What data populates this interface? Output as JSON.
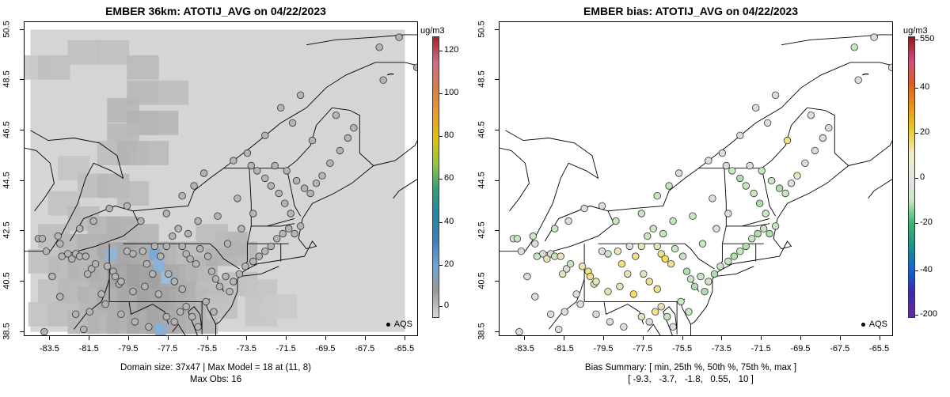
{
  "left": {
    "title": "EMBER 36km: ATOTIJ_AVG on 04/22/2023",
    "footer_line1": "Domain size: 37x47 | Max Model = 18 at (11, 8)",
    "footer_line2": "Max Obs: 16",
    "legend_label": "AQS",
    "colorbar": {
      "unit": "ug/m3",
      "ticks": [
        "120",
        "100",
        "80",
        "60",
        "40",
        "20",
        "0"
      ],
      "colors": [
        "#aa2222",
        "#d46a86",
        "#e07a4a",
        "#ee9a22",
        "#e2c400",
        "#8fc63c",
        "#2ea07a",
        "#1b8aa6",
        "#3b7fc4",
        "#6fa6d8",
        "#9a9a9a",
        "#d8d8d8"
      ]
    }
  },
  "right": {
    "title": "EMBER bias: ATOTIJ_AVG on 04/22/2023",
    "footer_line1": "Bias Summary: [ min, 25th %, 50th %, 75th %, max ]",
    "footer_line2": "[ -9.3,   -3.7,   -1.8,   0.55,   10 ]",
    "legend_label": "AQS",
    "colorbar": {
      "unit": "ug/m3",
      "ticks": [
        "550",
        "40",
        "20",
        "0",
        "-20",
        "-40",
        "-200"
      ],
      "colors": [
        "#8c1a1a",
        "#c8527a",
        "#d8602a",
        "#e8961e",
        "#e4cc30",
        "#f0ecc8",
        "#e4e4e4",
        "#c8e6c0",
        "#40b070",
        "#208f8f",
        "#1a5fc8",
        "#3a2aaa",
        "#6b2aa0"
      ]
    }
  },
  "axes": {
    "x_ticks": [
      "-83.5",
      "-81.5",
      "-79.5",
      "-77.5",
      "-75.5",
      "-73.5",
      "-71.5",
      "-69.5",
      "-67.5",
      "-65.5"
    ],
    "y_ticks": [
      "50.5",
      "48.5",
      "46.5",
      "44.5",
      "42.5",
      "40.5",
      "38.5"
    ],
    "x_range": [
      -84.8,
      -64.8
    ],
    "y_range": [
      38.3,
      50.8
    ]
  },
  "map": {
    "sites": [
      [
        -84.1,
        42.2
      ],
      [
        -83.9,
        42.2
      ],
      [
        -83.7,
        41.7
      ],
      [
        -83.1,
        42.3
      ],
      [
        -83.0,
        42.0
      ],
      [
        -82.9,
        41.5
      ],
      [
        -82.6,
        41.6
      ],
      [
        -82.4,
        41.4
      ],
      [
        -82.2,
        41.6
      ],
      [
        -82.0,
        41.5
      ],
      [
        -81.7,
        41.5
      ],
      [
        -81.4,
        41.0
      ],
      [
        -81.6,
        40.8
      ],
      [
        -81.2,
        41.2
      ],
      [
        -80.6,
        41.1
      ],
      [
        -80.3,
        40.9
      ],
      [
        -80.0,
        40.4
      ],
      [
        -80.2,
        40.7
      ],
      [
        -79.9,
        40.5
      ],
      [
        -79.6,
        41.7
      ],
      [
        -79.3,
        41.6
      ],
      [
        -78.8,
        41.7
      ],
      [
        -78.6,
        41.2
      ],
      [
        -78.3,
        40.8
      ],
      [
        -78.2,
        41.9
      ],
      [
        -77.9,
        41.5
      ],
      [
        -77.6,
        41.9
      ],
      [
        -77.3,
        42.3
      ],
      [
        -77.0,
        42.6
      ],
      [
        -76.5,
        42.4
      ],
      [
        -76.8,
        41.9
      ],
      [
        -76.6,
        41.6
      ],
      [
        -76.4,
        41.4
      ],
      [
        -76.1,
        41.2
      ],
      [
        -75.9,
        41.8
      ],
      [
        -75.5,
        41.5
      ],
      [
        -75.3,
        40.9
      ],
      [
        -75.1,
        40.6
      ],
      [
        -74.9,
        40.3
      ],
      [
        -74.6,
        40.7
      ],
      [
        -74.4,
        40.1
      ],
      [
        -74.2,
        40.5
      ],
      [
        -73.9,
        40.8
      ],
      [
        -73.6,
        41.1
      ],
      [
        -73.2,
        41.3
      ],
      [
        -72.9,
        41.5
      ],
      [
        -72.6,
        41.7
      ],
      [
        -72.3,
        41.9
      ],
      [
        -72.0,
        42.2
      ],
      [
        -71.7,
        42.4
      ],
      [
        -71.4,
        42.6
      ],
      [
        -71.1,
        42.4
      ],
      [
        -70.8,
        42.7
      ],
      [
        -71.3,
        43.2
      ],
      [
        -71.6,
        43.6
      ],
      [
        -71.9,
        44.0
      ],
      [
        -72.3,
        44.3
      ],
      [
        -72.6,
        44.6
      ],
      [
        -73.0,
        44.9
      ],
      [
        -73.3,
        45.1
      ],
      [
        -72.1,
        45.1
      ],
      [
        -71.5,
        44.9
      ],
      [
        -71.0,
        44.5
      ],
      [
        -70.6,
        44.2
      ],
      [
        -70.3,
        44.0
      ],
      [
        -70.0,
        44.4
      ],
      [
        -69.7,
        44.7
      ],
      [
        -69.3,
        45.2
      ],
      [
        -68.8,
        45.7
      ],
      [
        -68.4,
        46.2
      ],
      [
        -68.1,
        46.6
      ],
      [
        -69.0,
        47.1
      ],
      [
        -70.2,
        46.1
      ],
      [
        -71.2,
        46.8
      ],
      [
        -72.6,
        46.3
      ],
      [
        -73.5,
        45.6
      ],
      [
        -74.2,
        45.3
      ],
      [
        -75.7,
        44.8
      ],
      [
        -76.2,
        44.3
      ],
      [
        -76.8,
        43.9
      ],
      [
        -77.6,
        43.2
      ],
      [
        -78.9,
        42.9
      ],
      [
        -79.6,
        43.5
      ],
      [
        -80.5,
        43.4
      ],
      [
        -81.3,
        42.9
      ],
      [
        -82.0,
        42.6
      ],
      [
        -83.4,
        40.7
      ],
      [
        -83.0,
        39.9
      ],
      [
        -82.2,
        39.2
      ],
      [
        -81.5,
        39.3
      ],
      [
        -80.7,
        39.6
      ],
      [
        -79.9,
        39.2
      ],
      [
        -79.2,
        38.9
      ],
      [
        -78.5,
        38.7
      ],
      [
        -77.6,
        39.1
      ],
      [
        -77.2,
        38.9
      ],
      [
        -76.9,
        39.3
      ],
      [
        -76.6,
        39.5
      ],
      [
        -76.3,
        39.1
      ],
      [
        -76.0,
        38.7
      ],
      [
        -75.6,
        39.7
      ],
      [
        -75.2,
        39.3
      ],
      [
        -76.8,
        40.2
      ],
      [
        -77.2,
        40.5
      ],
      [
        -78.0,
        40.0
      ],
      [
        -78.7,
        40.3
      ],
      [
        -79.3,
        40.1
      ],
      [
        -80.9,
        40.0
      ],
      [
        -83.8,
        38.5
      ],
      [
        -81.8,
        38.6
      ],
      [
        -74.0,
        43.8
      ],
      [
        -73.2,
        43.2
      ],
      [
        -71.8,
        47.4
      ],
      [
        -70.8,
        47.9
      ],
      [
        -66.6,
        48.5
      ],
      [
        -64.9,
        49.0
      ],
      [
        -65.8,
        50.2
      ],
      [
        -66.8,
        49.8
      ],
      [
        -74.5,
        42.0
      ],
      [
        -73.8,
        42.6
      ],
      [
        -75.0,
        43.1
      ],
      [
        -76.0,
        42.9
      ],
      [
        -77.5,
        40.8
      ]
    ],
    "bias_colors": [
      "#dcdcdc",
      "#c8e6c0",
      "#dcdcdc",
      "#c8e6c0",
      "#dcdcdc",
      "#c8e6c0",
      "#dcdcdc",
      "#e8e4b8",
      "#dcdcdc",
      "#c8e6c0",
      "#e8e4b8",
      "#dcdcdc",
      "#e8e4b8",
      "#c8e6c0",
      "#e8e4b8",
      "#f0e08a",
      "#e8e4b8",
      "#f0e08a",
      "#e8e4b8",
      "#dcdcdc",
      "#c8e6c0",
      "#e8e4b8",
      "#f0e08a",
      "#e8e4b8",
      "#dcdcdc",
      "#f0e08a",
      "#e8e4b8",
      "#c8e6c0",
      "#c8e6c0",
      "#c8e6c0",
      "#e8e4b8",
      "#f0e08a",
      "#f4e060",
      "#f0e08a",
      "#c8e6c0",
      "#c8e6c0",
      "#b0dcb0",
      "#c8e6c0",
      "#b0dcb0",
      "#c8e6c0",
      "#b0dcb0",
      "#c8e6c0",
      "#b0dcb0",
      "#c8e6c0",
      "#c8e6c0",
      "#b0dcb0",
      "#c8e6c0",
      "#b0dcb0",
      "#c8e6c0",
      "#b0dcb0",
      "#c8e6c0",
      "#b0dcb0",
      "#c8e6c0",
      "#c8e6c0",
      "#b0dcb0",
      "#c8e6c0",
      "#c8e6c0",
      "#b0dcb0",
      "#c8e6c0",
      "#dcdcdc",
      "#dcdcdc",
      "#c8e6c0",
      "#c8e6c0",
      "#b0dcb0",
      "#c8e6c0",
      "#dcdcdc",
      "#e8e4b8",
      "#dcdcdc",
      "#dcdcdc",
      "#dcdcdc",
      "#dcdcdc",
      "#dcdcdc",
      "#f0e08a",
      "#dcdcdc",
      "#dcdcdc",
      "#dcdcdc",
      "#dcdcdc",
      "#dcdcdc",
      "#c8e6c0",
      "#c8e6c0",
      "#c8e6c0",
      "#c8e6c0",
      "#dcdcdc",
      "#dcdcdc",
      "#dcdcdc",
      "#c8e6c0",
      "#dcdcdc",
      "#dcdcdc",
      "#dcdcdc",
      "#dcdcdc",
      "#dcdcdc",
      "#dcdcdc",
      "#dcdcdc",
      "#dcdcdc",
      "#e8e4b8",
      "#dcdcdc",
      "#f0e08a",
      "#e8e4b8",
      "#c8e6c0",
      "#dcdcdc",
      "#c8e6c0",
      "#c8e6c0",
      "#f0e08a",
      "#f0e08a",
      "#f4e060",
      "#e8e4b8",
      "#e8e4b8",
      "#dcdcdc",
      "#dcdcdc",
      "#dcdcdc",
      "#dcdcdc",
      "#dcdcdc",
      "#dcdcdc",
      "#dcdcdc",
      "#dcdcdc",
      "#dcdcdc",
      "#dcdcdc",
      "#c8e6c0",
      "#c8e6c0",
      "#dcdcdc",
      "#c8e6c0",
      "#c8e6c0",
      "#e8e4b8"
    ],
    "shade_cells": [
      [
        -84.3,
        49.0,
        "#c8c8c8"
      ],
      [
        -83.3,
        49.0,
        "#c0c0c0"
      ],
      [
        -81.8,
        49.6,
        "#c0c0c0"
      ],
      [
        -80.3,
        49.6,
        "#c0c0c0"
      ],
      [
        -78.8,
        49.0,
        "#bababa"
      ],
      [
        -78.8,
        48.0,
        "#b8b8b8"
      ],
      [
        -77.3,
        48.0,
        "#bebebe"
      ],
      [
        -79.8,
        47.3,
        "#b6b6b6"
      ],
      [
        -78.8,
        46.8,
        "#b2b2b2"
      ],
      [
        -77.8,
        46.8,
        "#b6b6b6"
      ],
      [
        -79.8,
        46.3,
        "#b8b8b8"
      ],
      [
        -80.3,
        45.6,
        "#bebebe"
      ],
      [
        -79.3,
        45.6,
        "#b4b4b4"
      ],
      [
        -78.3,
        45.6,
        "#bababa"
      ],
      [
        -82.3,
        45.0,
        "#c4c4c4"
      ],
      [
        -81.3,
        44.3,
        "#bebebe"
      ],
      [
        -80.3,
        44.3,
        "#b8b8b8"
      ],
      [
        -79.3,
        44.0,
        "#bcbcbc"
      ],
      [
        -82.8,
        43.6,
        "#c2c2c2"
      ],
      [
        -81.8,
        43.0,
        "#bcbcbc"
      ],
      [
        -80.8,
        42.6,
        "#b6b6b6"
      ],
      [
        -79.8,
        42.6,
        "#b0b0b0"
      ],
      [
        -78.8,
        42.3,
        "#b6b6b6"
      ],
      [
        -83.3,
        42.3,
        "#bebebe"
      ],
      [
        -82.3,
        41.9,
        "#b8b8b8"
      ],
      [
        -81.3,
        41.9,
        "#b2b2b2"
      ],
      [
        -80.3,
        41.6,
        "#a8a8a8"
      ],
      [
        -79.3,
        41.6,
        "#a6a6a6"
      ],
      [
        -78.3,
        41.6,
        "#acacac"
      ],
      [
        -77.3,
        41.6,
        "#b2b2b2"
      ],
      [
        -76.3,
        41.6,
        "#bcbcbc"
      ],
      [
        -83.8,
        41.3,
        "#c0c0c0"
      ],
      [
        -82.8,
        41.0,
        "#bababa"
      ],
      [
        -81.8,
        41.0,
        "#b4b4b4"
      ],
      [
        -80.8,
        40.7,
        "#aeaeae"
      ],
      [
        -79.8,
        40.7,
        "#a4a4a4"
      ],
      [
        -78.8,
        40.7,
        "#9e9e9e"
      ],
      [
        -77.8,
        40.7,
        "#a2a2a2"
      ],
      [
        -76.8,
        40.7,
        "#acacac"
      ],
      [
        -75.8,
        41.0,
        "#b6b6b6"
      ],
      [
        -74.8,
        41.6,
        "#b0b0b0"
      ],
      [
        -73.8,
        41.6,
        "#b6b6b6"
      ],
      [
        -74.3,
        42.0,
        "#b4b4b4"
      ],
      [
        -75.3,
        42.3,
        "#bcbcbc"
      ],
      [
        -83.3,
        40.1,
        "#c0c0c0"
      ],
      [
        -82.3,
        40.1,
        "#b8b8b8"
      ],
      [
        -81.3,
        39.8,
        "#b2b2b2"
      ],
      [
        -80.3,
        39.8,
        "#acacac"
      ],
      [
        -79.3,
        39.8,
        "#a8a8a8"
      ],
      [
        -78.3,
        39.8,
        "#a2a2a2"
      ],
      [
        -77.3,
        39.8,
        "#a4a4a4"
      ],
      [
        -76.3,
        39.8,
        "#aeaeae"
      ],
      [
        -75.3,
        40.1,
        "#bababa"
      ],
      [
        -83.8,
        39.2,
        "#c4c4c4"
      ],
      [
        -82.8,
        39.2,
        "#bebebe"
      ],
      [
        -81.8,
        38.9,
        "#b8b8b8"
      ],
      [
        -80.8,
        38.9,
        "#b2b2b2"
      ],
      [
        -79.8,
        38.9,
        "#aeaeae"
      ],
      [
        -78.8,
        38.9,
        "#a8a8a8"
      ],
      [
        -77.8,
        38.9,
        "#a4a4a4"
      ],
      [
        -76.8,
        38.9,
        "#aaaaaa"
      ],
      [
        -75.8,
        38.9,
        "#b4b4b4"
      ],
      [
        -74.8,
        39.5,
        "#c0c0c0"
      ],
      [
        -73.8,
        40.4,
        "#c0c0c0"
      ],
      [
        -72.8,
        40.1,
        "#c4c4c4"
      ],
      [
        -72.8,
        39.2,
        "#c6c6c6"
      ],
      [
        -71.8,
        39.5,
        "#cacaca"
      ]
    ],
    "blue_cells": [
      [
        -80.4,
        41.6,
        "#8fb4d8"
      ],
      [
        -78.2,
        41.6,
        "#7aa8d4"
      ],
      [
        -78.0,
        41.2,
        "#8ab2d8"
      ],
      [
        -77.6,
        40.7,
        "#9cbcdc"
      ],
      [
        -77.9,
        38.6,
        "#88b0d8"
      ]
    ]
  }
}
